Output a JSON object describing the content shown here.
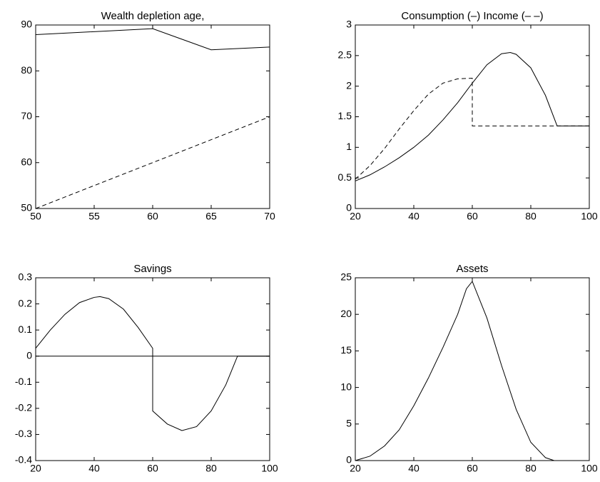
{
  "chart_data": [
    {
      "type": "line",
      "title": "Wealth depletion age,",
      "xlim": [
        50,
        70
      ],
      "xticks": [
        50,
        55,
        60,
        65,
        70
      ],
      "ylim": [
        50,
        90
      ],
      "yticks": [
        50,
        60,
        70,
        80,
        90
      ],
      "series": [
        {
          "color": "#000000",
          "dash": false,
          "x": [
            50,
            60,
            65,
            70
          ],
          "values": [
            87.9,
            89.2,
            84.6,
            85.2
          ]
        },
        {
          "color": "#000000",
          "dash": true,
          "x": [
            50,
            70
          ],
          "values": [
            50,
            70
          ]
        }
      ]
    },
    {
      "type": "line",
      "title": "Consumption (–)  Income (– –)",
      "xlim": [
        20,
        100
      ],
      "xticks": [
        20,
        40,
        60,
        80,
        100
      ],
      "ylim": [
        0,
        3
      ],
      "yticks": [
        0,
        0.5,
        1,
        1.5,
        2,
        2.5,
        3
      ],
      "series": [
        {
          "color": "#000000",
          "dash": false,
          "x": [
            20,
            25,
            30,
            35,
            40,
            45,
            50,
            55,
            60,
            65,
            70,
            73,
            75,
            80,
            85,
            89,
            95,
            100
          ],
          "values": [
            0.45,
            0.55,
            0.68,
            0.83,
            1.0,
            1.2,
            1.45,
            1.73,
            2.05,
            2.35,
            2.53,
            2.55,
            2.52,
            2.3,
            1.85,
            1.35,
            1.35,
            1.35
          ]
        },
        {
          "color": "#000000",
          "dash": true,
          "x": [
            20,
            25,
            30,
            35,
            40,
            45,
            50,
            55,
            60,
            60,
            100
          ],
          "values": [
            0.48,
            0.7,
            0.98,
            1.3,
            1.6,
            1.87,
            2.05,
            2.12,
            2.13,
            1.35,
            1.35
          ]
        }
      ]
    },
    {
      "type": "line",
      "title": "Savings",
      "xlim": [
        20,
        100
      ],
      "xticks": [
        20,
        40,
        60,
        80,
        100
      ],
      "ylim": [
        -0.4,
        0.3
      ],
      "yticks": [
        -0.4,
        -0.3,
        -0.2,
        -0.1,
        0,
        0.1,
        0.2,
        0.3
      ],
      "series": [
        {
          "color": "#000000",
          "dash": false,
          "x": [
            20,
            25,
            30,
            35,
            40,
            42,
            45,
            50,
            55,
            60,
            60,
            65,
            70,
            75,
            80,
            85,
            89,
            100
          ],
          "values": [
            0.03,
            0.1,
            0.16,
            0.205,
            0.225,
            0.228,
            0.22,
            0.18,
            0.11,
            0.03,
            -0.21,
            -0.26,
            -0.285,
            -0.27,
            -0.21,
            -0.11,
            0,
            0
          ]
        },
        {
          "color": "#000000",
          "dash": false,
          "x": [
            20,
            100
          ],
          "values": [
            0,
            0
          ]
        }
      ]
    },
    {
      "type": "line",
      "title": "Assets",
      "xlim": [
        20,
        100
      ],
      "xticks": [
        20,
        40,
        60,
        80,
        100
      ],
      "ylim": [
        0,
        25
      ],
      "yticks": [
        0,
        5,
        10,
        15,
        20,
        25
      ],
      "series": [
        {
          "color": "#000000",
          "dash": false,
          "x": [
            20,
            25,
            30,
            35,
            40,
            45,
            50,
            55,
            58,
            60,
            65,
            70,
            75,
            80,
            85,
            88,
            100
          ],
          "values": [
            0,
            0.6,
            2,
            4.2,
            7.5,
            11.3,
            15.5,
            20,
            23.5,
            24.5,
            19.5,
            13,
            7,
            2.5,
            0.4,
            0,
            0
          ]
        }
      ]
    }
  ]
}
